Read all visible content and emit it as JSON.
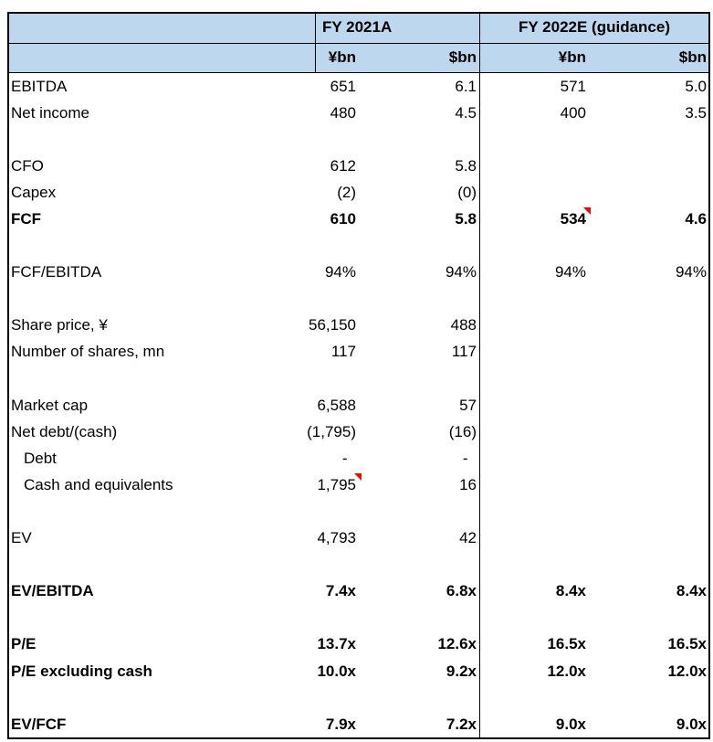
{
  "colors": {
    "header_bg": "#BDD7EE",
    "border": "#000000",
    "comment_indicator": "#FF0000"
  },
  "header": {
    "blank": "",
    "group1": "FY 2021A",
    "group2": "FY 2022E (guidance)",
    "units": [
      "¥bn",
      "$bn",
      "¥bn",
      "$bn"
    ]
  },
  "rows": [
    {
      "label": "EBITDA",
      "cells": [
        "651",
        "6.1",
        "571",
        "5.0"
      ]
    },
    {
      "label": "Net income",
      "cells": [
        "480",
        "4.5",
        "400",
        "3.5"
      ]
    },
    {
      "label": "",
      "cells": [
        "",
        "",
        "",
        ""
      ]
    },
    {
      "label": "CFO",
      "cells": [
        "612",
        "5.8",
        "",
        ""
      ]
    },
    {
      "label": "Capex",
      "cells": [
        "(2)",
        "(0)",
        "",
        ""
      ]
    },
    {
      "label": "FCF",
      "cells": [
        "610",
        "5.8",
        "534",
        "4.6"
      ],
      "bold": true,
      "note_cell": 2
    },
    {
      "label": "",
      "cells": [
        "",
        "",
        "",
        ""
      ]
    },
    {
      "label": "FCF/EBITDA",
      "cells": [
        "94%",
        "94%",
        "94%",
        "94%"
      ]
    },
    {
      "label": "",
      "cells": [
        "",
        "",
        "",
        ""
      ]
    },
    {
      "label": "Share price, ¥",
      "cells": [
        "56,150",
        "488",
        "",
        ""
      ]
    },
    {
      "label": "Number of shares, mn",
      "cells": [
        "117",
        "117",
        "",
        ""
      ]
    },
    {
      "label": "",
      "cells": [
        "",
        "",
        "",
        ""
      ]
    },
    {
      "label": "Market cap",
      "cells": [
        "6,588",
        "57",
        "",
        ""
      ]
    },
    {
      "label": "Net debt/(cash)",
      "cells": [
        "(1,795)",
        "(16)",
        "",
        ""
      ]
    },
    {
      "label": "Debt",
      "cells": [
        "-  ",
        "-  ",
        "",
        ""
      ],
      "indent": true
    },
    {
      "label": "Cash and equivalents",
      "cells": [
        "1,795",
        "16",
        "",
        ""
      ],
      "indent": true,
      "note_cell": 0
    },
    {
      "label": "",
      "cells": [
        "",
        "",
        "",
        ""
      ]
    },
    {
      "label": "EV",
      "cells": [
        "4,793",
        "42",
        "",
        ""
      ]
    },
    {
      "label": "",
      "cells": [
        "",
        "",
        "",
        ""
      ]
    },
    {
      "label": "EV/EBITDA",
      "cells": [
        "7.4x",
        "6.8x",
        "8.4x",
        "8.4x"
      ],
      "bold": true
    },
    {
      "label": "",
      "cells": [
        "",
        "",
        "",
        ""
      ]
    },
    {
      "label": "P/E",
      "cells": [
        "13.7x",
        "12.6x",
        "16.5x",
        "16.5x"
      ],
      "bold": true
    },
    {
      "label": "P/E excluding cash",
      "cells": [
        "10.0x",
        "9.2x",
        "12.0x",
        "12.0x"
      ],
      "bold": true
    },
    {
      "label": "",
      "cells": [
        "",
        "",
        "",
        ""
      ]
    },
    {
      "label": "EV/FCF",
      "cells": [
        "7.9x",
        "7.2x",
        "9.0x",
        "9.0x"
      ],
      "bold": true
    }
  ]
}
